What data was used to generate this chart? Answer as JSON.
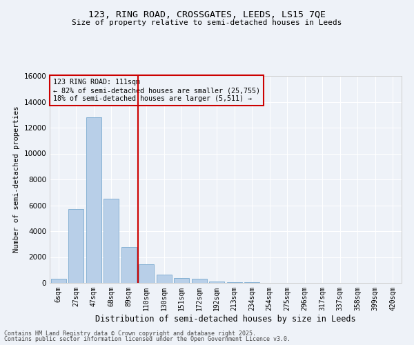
{
  "title1": "123, RING ROAD, CROSSGATES, LEEDS, LS15 7QE",
  "title2": "Size of property relative to semi-detached houses in Leeds",
  "xlabel": "Distribution of semi-detached houses by size in Leeds",
  "ylabel": "Number of semi-detached properties",
  "categories": [
    "6sqm",
    "27sqm",
    "47sqm",
    "68sqm",
    "89sqm",
    "110sqm",
    "130sqm",
    "151sqm",
    "172sqm",
    "192sqm",
    "213sqm",
    "234sqm",
    "254sqm",
    "275sqm",
    "296sqm",
    "317sqm",
    "337sqm",
    "358sqm",
    "399sqm",
    "420sqm"
  ],
  "values": [
    300,
    5700,
    12800,
    6500,
    2800,
    1450,
    650,
    400,
    300,
    130,
    50,
    30,
    20,
    10,
    5,
    3,
    2,
    1,
    0,
    0
  ],
  "bar_color": "#b8cfe8",
  "bar_edge_color": "#7aaacf",
  "vline_color": "#cc0000",
  "annotation_title": "123 RING ROAD: 111sqm",
  "annotation_line1": "← 82% of semi-detached houses are smaller (25,755)",
  "annotation_line2": "18% of semi-detached houses are larger (5,511) →",
  "annotation_box_color": "#cc0000",
  "ylim": [
    0,
    16000
  ],
  "yticks": [
    0,
    2000,
    4000,
    6000,
    8000,
    10000,
    12000,
    14000,
    16000
  ],
  "footer1": "Contains HM Land Registry data © Crown copyright and database right 2025.",
  "footer2": "Contains public sector information licensed under the Open Government Licence v3.0.",
  "background_color": "#eef2f8",
  "grid_color": "#ffffff"
}
